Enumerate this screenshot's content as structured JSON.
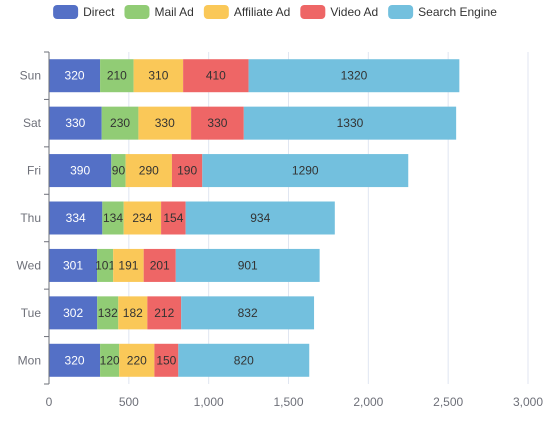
{
  "chart_data": {
    "type": "bar",
    "orientation": "horizontal",
    "stacked": true,
    "title": "",
    "xlabel": "",
    "ylabel": "",
    "categories": [
      "Mon",
      "Tue",
      "Wed",
      "Thu",
      "Fri",
      "Sat",
      "Sun"
    ],
    "series": [
      {
        "name": "Direct",
        "color": "#5470c6",
        "label_color": "#ffffff",
        "values": [
          320,
          302,
          301,
          334,
          390,
          330,
          320
        ]
      },
      {
        "name": "Mail Ad",
        "color": "#91cc75",
        "label_color": "#333333",
        "values": [
          120,
          132,
          101,
          134,
          90,
          230,
          210
        ]
      },
      {
        "name": "Affiliate Ad",
        "color": "#fac858",
        "label_color": "#333333",
        "values": [
          220,
          182,
          191,
          234,
          290,
          330,
          310
        ]
      },
      {
        "name": "Video Ad",
        "color": "#ee6666",
        "label_color": "#333333",
        "values": [
          150,
          212,
          201,
          154,
          190,
          330,
          410
        ]
      },
      {
        "name": "Search Engine",
        "color": "#73c0de",
        "label_color": "#333333",
        "values": [
          820,
          832,
          901,
          934,
          1290,
          1330,
          1320
        ]
      }
    ],
    "xlim": [
      0,
      3000
    ],
    "xticks": [
      0,
      500,
      1000,
      1500,
      2000,
      2500,
      3000
    ],
    "xtick_labels": [
      "0",
      "500",
      "1,000",
      "1,500",
      "2,000",
      "2,500",
      "3,000"
    ],
    "grid": true,
    "legend_position": "top-center"
  }
}
